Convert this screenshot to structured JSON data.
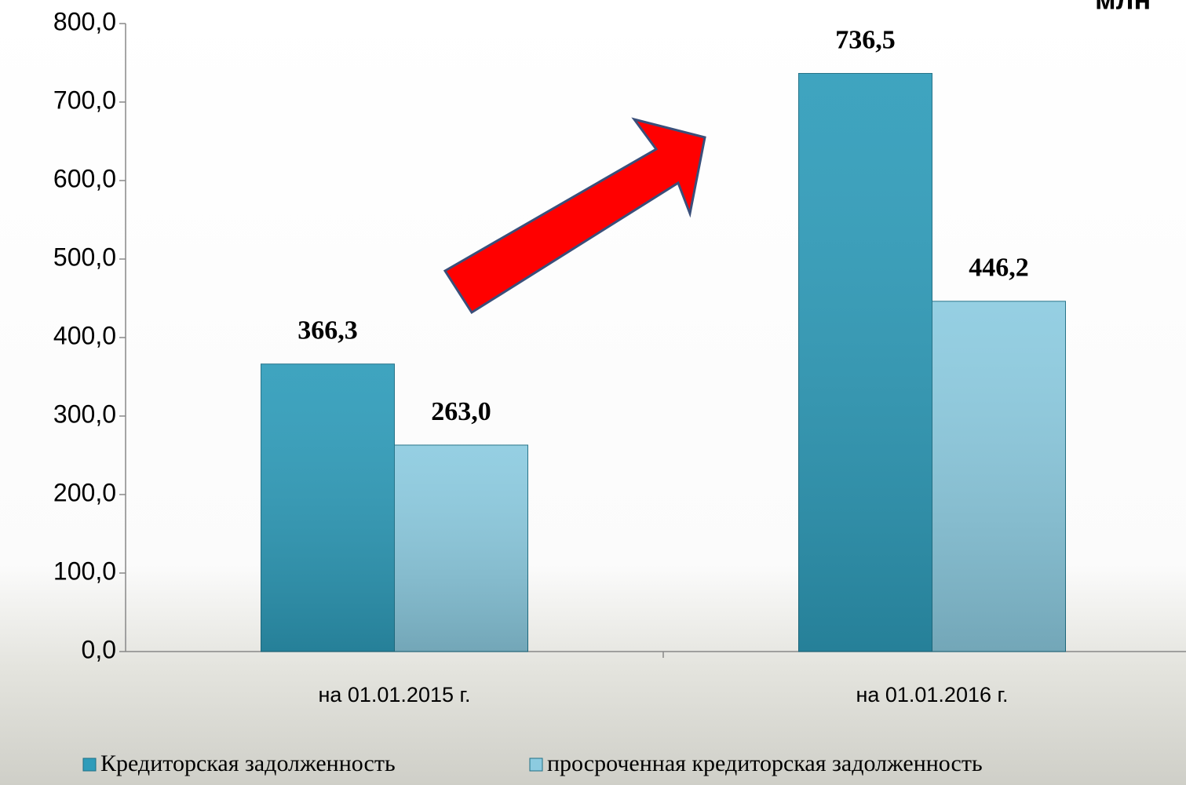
{
  "chart_data": {
    "type": "bar",
    "annotation": "млн",
    "categories": [
      "на 01.01.2015 г.",
      "на 01.01.2016 г."
    ],
    "series": [
      {
        "name": "Кредиторская задолженность",
        "color": "#2e9cba",
        "values": [
          366.3,
          736.5
        ],
        "value_labels": [
          "366,3",
          "736,5"
        ]
      },
      {
        "name": "просроченная кредиторская задолженность",
        "color": "#8ccbe0",
        "values": [
          263.0,
          446.2
        ],
        "value_labels": [
          "263,0",
          "446,2"
        ]
      }
    ],
    "ylim": [
      0,
      800
    ],
    "yticks": [
      {
        "value": 0,
        "label": "0,0"
      },
      {
        "value": 100,
        "label": "100,0"
      },
      {
        "value": 200,
        "label": "200,0"
      },
      {
        "value": 300,
        "label": "300,0"
      },
      {
        "value": 400,
        "label": "400,0"
      },
      {
        "value": 500,
        "label": "500,0"
      },
      {
        "value": 600,
        "label": "600,0"
      },
      {
        "value": 700,
        "label": "700,0"
      },
      {
        "value": 800,
        "label": "800,0"
      }
    ],
    "legend": "bottom",
    "grid": false
  }
}
